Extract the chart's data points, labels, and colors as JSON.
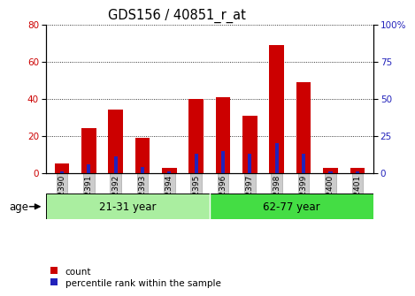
{
  "title": "GDS156 / 40851_r_at",
  "samples": [
    "GSM2390",
    "GSM2391",
    "GSM2392",
    "GSM2393",
    "GSM2394",
    "GSM2395",
    "GSM2396",
    "GSM2397",
    "GSM2398",
    "GSM2399",
    "GSM2400",
    "GSM2401"
  ],
  "count_values": [
    5,
    24,
    34,
    19,
    3,
    40,
    41,
    31,
    69,
    49,
    3,
    3
  ],
  "percentile_values": [
    1,
    6,
    11,
    4,
    1,
    13,
    15,
    13,
    20,
    13,
    1,
    1
  ],
  "group1_label": "21-31 year",
  "group2_label": "62-77 year",
  "age_label": "age",
  "ylim_left": [
    0,
    80
  ],
  "ylim_right": [
    0,
    100
  ],
  "yticks_left": [
    0,
    20,
    40,
    60,
    80
  ],
  "yticks_right": [
    0,
    25,
    50,
    75,
    100
  ],
  "bar_color": "#cc0000",
  "percentile_color": "#2222bb",
  "bar_width": 0.55,
  "group1_color": "#aaeea0",
  "group2_color": "#44dd44",
  "legend_count": "count",
  "legend_percentile": "percentile rank within the sample",
  "title_fontsize": 10.5,
  "tick_fontsize": 7.5,
  "xlabel_fontsize": 6.5,
  "label_fontsize": 8.5,
  "background_color": "#ffffff"
}
